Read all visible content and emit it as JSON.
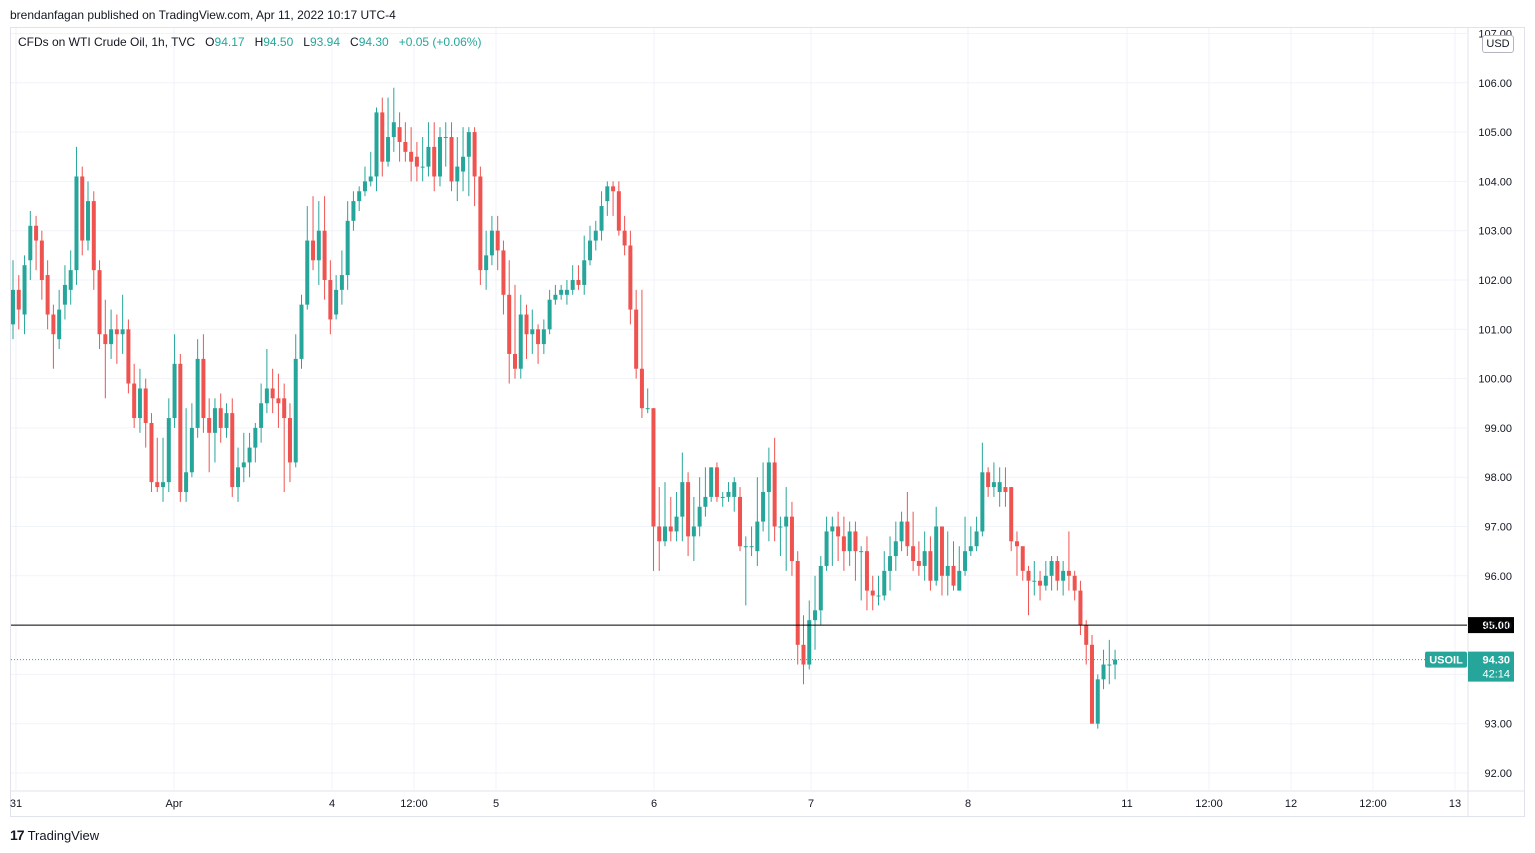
{
  "header": {
    "published": "brendanfagan published on TradingView.com, Apr 11, 2022 10:17 UTC-4"
  },
  "legend": {
    "symbol": "CFDs on WTI Crude Oil, 1h, TVC",
    "o_label": "O",
    "o_value": "94.17",
    "h_label": "H",
    "h_value": "94.50",
    "l_label": "L",
    "l_value": "93.94",
    "c_label": "C",
    "c_value": "94.30",
    "change": "+0.05 (+0.06%)"
  },
  "currency": "USD",
  "brand": {
    "logo": "17",
    "name": "TradingView"
  },
  "colors": {
    "up": "#26a69a",
    "down": "#ef5350",
    "grid": "#f0f3fa",
    "text": "#131722"
  },
  "chart_data": {
    "type": "candlestick",
    "interval": "1h",
    "symbol": "USOIL",
    "ylim": [
      91.6,
      107.0
    ],
    "y_ticks": [
      "92.00",
      "93.00",
      "94.00",
      "95.00",
      "96.00",
      "97.00",
      "98.00",
      "99.00",
      "100.00",
      "101.00",
      "102.00",
      "103.00",
      "104.00",
      "105.00",
      "106.00",
      "107.00"
    ],
    "x_ticks": [
      "31",
      "Apr",
      "4",
      "12:00",
      "5",
      "6",
      "7",
      "8",
      "11",
      "12:00",
      "12",
      "12:00",
      "13"
    ],
    "horizontal_line": {
      "value": 95.0,
      "label": "95.00"
    },
    "last_price": {
      "symbol": "USOIL",
      "value": "94.30",
      "countdown": "42:14"
    },
    "candles": [
      [
        101.1,
        101.8,
        102.4,
        100.8
      ],
      [
        101.8,
        101.4,
        102.1,
        101.0
      ],
      [
        101.3,
        102.3,
        102.5,
        100.9
      ],
      [
        102.4,
        103.1,
        103.4,
        102.0
      ],
      [
        103.1,
        102.8,
        103.3,
        102.2
      ],
      [
        102.8,
        102.0,
        103.0,
        101.6
      ],
      [
        102.1,
        101.3,
        102.4,
        101.0
      ],
      [
        101.3,
        100.9,
        101.5,
        100.2
      ],
      [
        100.8,
        101.4,
        101.8,
        100.6
      ],
      [
        101.5,
        101.9,
        102.3,
        101.2
      ],
      [
        101.8,
        102.2,
        102.6,
        101.5
      ],
      [
        102.2,
        104.1,
        104.7,
        101.9
      ],
      [
        104.1,
        102.8,
        104.3,
        102.5
      ],
      [
        102.8,
        103.6,
        104.0,
        102.6
      ],
      [
        103.6,
        102.2,
        103.8,
        101.8
      ],
      [
        102.2,
        100.9,
        102.4,
        100.6
      ],
      [
        100.9,
        100.7,
        101.6,
        99.6
      ],
      [
        100.7,
        101.0,
        101.4,
        100.4
      ],
      [
        101.0,
        100.9,
        101.3,
        100.3
      ],
      [
        100.9,
        101.0,
        101.7,
        100.5
      ],
      [
        101.0,
        99.9,
        101.2,
        99.7
      ],
      [
        99.9,
        99.2,
        100.3,
        99.0
      ],
      [
        99.2,
        99.8,
        100.2,
        98.9
      ],
      [
        99.8,
        99.1,
        100.0,
        98.6
      ],
      [
        99.1,
        97.9,
        99.3,
        97.7
      ],
      [
        97.9,
        97.8,
        98.8,
        97.7
      ],
      [
        97.8,
        97.9,
        98.8,
        97.5
      ],
      [
        97.9,
        99.2,
        99.6,
        97.7
      ],
      [
        99.2,
        100.3,
        100.9,
        99.0
      ],
      [
        100.3,
        97.7,
        100.5,
        97.5
      ],
      [
        97.7,
        98.1,
        99.4,
        97.5
      ],
      [
        98.1,
        99.0,
        99.5,
        98.0
      ],
      [
        99.0,
        100.4,
        100.8,
        98.8
      ],
      [
        100.4,
        99.2,
        100.9,
        98.9
      ],
      [
        99.2,
        98.9,
        99.6,
        98.1
      ],
      [
        98.9,
        99.4,
        99.6,
        98.3
      ],
      [
        99.4,
        99.0,
        99.7,
        98.7
      ],
      [
        99.0,
        99.3,
        99.5,
        98.8
      ],
      [
        99.3,
        97.8,
        99.6,
        97.6
      ],
      [
        97.8,
        98.2,
        98.6,
        97.5
      ],
      [
        98.2,
        98.3,
        98.9,
        97.9
      ],
      [
        98.3,
        98.6,
        98.9,
        98.0
      ],
      [
        98.6,
        99.0,
        99.1,
        98.3
      ],
      [
        99.0,
        99.5,
        99.9,
        98.7
      ],
      [
        99.5,
        99.8,
        100.6,
        99.3
      ],
      [
        99.8,
        99.6,
        100.2,
        99.3
      ],
      [
        99.6,
        99.5,
        100.1,
        99.0
      ],
      [
        99.6,
        99.2,
        99.9,
        97.7
      ],
      [
        99.2,
        98.3,
        99.5,
        97.9
      ],
      [
        98.3,
        100.4,
        100.9,
        98.2
      ],
      [
        100.4,
        101.5,
        101.7,
        100.2
      ],
      [
        101.5,
        102.8,
        103.5,
        101.4
      ],
      [
        102.8,
        102.4,
        103.7,
        102.2
      ],
      [
        102.4,
        103.0,
        103.6,
        101.9
      ],
      [
        103.0,
        102.0,
        103.7,
        101.6
      ],
      [
        102.0,
        101.2,
        102.4,
        100.9
      ],
      [
        101.3,
        101.8,
        102.1,
        101.2
      ],
      [
        101.8,
        102.1,
        102.6,
        101.5
      ],
      [
        102.1,
        103.2,
        103.6,
        101.8
      ],
      [
        103.2,
        103.6,
        103.8,
        103.0
      ],
      [
        103.6,
        103.8,
        103.9,
        103.4
      ],
      [
        103.8,
        104.0,
        104.3,
        103.7
      ],
      [
        104.0,
        104.1,
        104.6,
        103.9
      ],
      [
        104.1,
        105.4,
        105.5,
        103.8
      ],
      [
        105.4,
        104.4,
        105.7,
        104.1
      ],
      [
        104.4,
        104.9,
        105.7,
        104.3
      ],
      [
        104.9,
        105.2,
        105.9,
        104.6
      ],
      [
        105.1,
        104.8,
        105.4,
        104.4
      ],
      [
        104.8,
        104.6,
        105.2,
        104.4
      ],
      [
        104.6,
        104.4,
        105.1,
        104.0
      ],
      [
        104.5,
        104.3,
        104.8,
        104.0
      ],
      [
        104.3,
        104.3,
        104.9,
        104.0
      ],
      [
        104.3,
        104.7,
        105.2,
        104.1
      ],
      [
        104.7,
        104.1,
        105.2,
        103.8
      ],
      [
        104.1,
        104.9,
        105.1,
        103.9
      ],
      [
        104.9,
        104.9,
        105.2,
        104.3
      ],
      [
        104.9,
        104.0,
        105.2,
        103.8
      ],
      [
        104.0,
        104.3,
        104.9,
        103.6
      ],
      [
        104.2,
        104.5,
        105.1,
        103.8
      ],
      [
        104.5,
        105.0,
        105.1,
        103.7
      ],
      [
        105.0,
        104.1,
        105.1,
        103.5
      ],
      [
        104.1,
        102.2,
        104.3,
        101.9
      ],
      [
        102.2,
        102.5,
        103.0,
        101.8
      ],
      [
        102.5,
        103.0,
        103.3,
        102.3
      ],
      [
        103.0,
        102.6,
        103.3,
        102.2
      ],
      [
        102.6,
        101.7,
        102.8,
        101.3
      ],
      [
        101.7,
        100.5,
        102.4,
        99.9
      ],
      [
        100.5,
        100.2,
        101.9,
        100.0
      ],
      [
        100.2,
        101.3,
        101.7,
        100.0
      ],
      [
        101.3,
        100.9,
        101.5,
        100.4
      ],
      [
        100.9,
        101.0,
        101.4,
        100.5
      ],
      [
        101.0,
        100.7,
        101.1,
        100.3
      ],
      [
        100.7,
        101.0,
        101.2,
        100.5
      ],
      [
        101.0,
        101.6,
        101.8,
        100.9
      ],
      [
        101.6,
        101.7,
        101.9,
        101.5
      ],
      [
        101.7,
        101.8,
        101.9,
        101.6
      ],
      [
        101.7,
        101.8,
        102.0,
        101.5
      ],
      [
        101.8,
        102.0,
        102.3,
        101.7
      ],
      [
        102.0,
        101.9,
        102.3,
        101.8
      ],
      [
        101.9,
        102.4,
        102.9,
        101.7
      ],
      [
        102.4,
        102.8,
        103.1,
        102.3
      ],
      [
        102.8,
        103.0,
        103.2,
        102.6
      ],
      [
        103.0,
        103.5,
        103.8,
        102.8
      ],
      [
        103.6,
        103.9,
        104.0,
        103.3
      ],
      [
        103.9,
        103.8,
        104.0,
        103.3
      ],
      [
        103.8,
        103.0,
        104.0,
        102.9
      ],
      [
        103.0,
        102.7,
        103.3,
        102.5
      ],
      [
        102.7,
        101.4,
        103.0,
        101.1
      ],
      [
        101.4,
        100.2,
        101.8,
        100.0
      ],
      [
        100.2,
        99.4,
        101.8,
        99.2
      ],
      [
        99.4,
        99.4,
        99.8,
        99.3
      ],
      [
        99.4,
        97.0,
        99.4,
        96.1
      ],
      [
        97.0,
        96.7,
        97.8,
        96.1
      ],
      [
        96.7,
        97.0,
        97.9,
        96.6
      ],
      [
        97.0,
        96.9,
        97.6,
        96.7
      ],
      [
        96.9,
        97.2,
        97.7,
        96.7
      ],
      [
        97.2,
        97.9,
        98.5,
        96.7
      ],
      [
        97.9,
        96.8,
        98.1,
        96.4
      ],
      [
        96.8,
        97.0,
        97.6,
        96.3
      ],
      [
        97.0,
        97.4,
        98.0,
        96.8
      ],
      [
        97.4,
        97.6,
        98.2,
        97.2
      ],
      [
        97.6,
        98.2,
        98.2,
        97.5
      ],
      [
        98.2,
        97.6,
        98.3,
        97.5
      ],
      [
        97.6,
        97.6,
        97.7,
        97.4
      ],
      [
        97.6,
        97.7,
        97.9,
        97.5
      ],
      [
        97.6,
        97.9,
        98.0,
        97.3
      ],
      [
        97.6,
        96.6,
        97.8,
        96.5
      ],
      [
        96.6,
        96.6,
        96.8,
        95.4
      ],
      [
        96.6,
        96.6,
        97.0,
        96.4
      ],
      [
        96.5,
        97.1,
        98.0,
        96.2
      ],
      [
        97.1,
        97.7,
        98.3,
        96.9
      ],
      [
        97.7,
        98.3,
        98.6,
        96.7
      ],
      [
        98.3,
        97.0,
        98.8,
        96.7
      ],
      [
        97.0,
        97.0,
        97.2,
        96.4
      ],
      [
        97.0,
        97.2,
        97.8,
        96.1
      ],
      [
        97.2,
        96.3,
        97.5,
        96.0
      ],
      [
        96.3,
        94.6,
        96.5,
        94.2
      ],
      [
        94.6,
        94.2,
        95.2,
        93.8
      ],
      [
        94.2,
        95.1,
        95.5,
        94.1
      ],
      [
        95.1,
        95.3,
        96.0,
        94.5
      ],
      [
        95.3,
        96.2,
        96.4,
        95.0
      ],
      [
        96.2,
        96.9,
        97.2,
        96.1
      ],
      [
        96.9,
        97.0,
        97.2,
        96.2
      ],
      [
        97.0,
        96.8,
        97.3,
        96.3
      ],
      [
        96.8,
        96.5,
        97.2,
        96.1
      ],
      [
        96.5,
        96.9,
        97.1,
        96.2
      ],
      [
        96.9,
        96.5,
        97.1,
        95.9
      ],
      [
        96.5,
        96.5,
        96.6,
        95.5
      ],
      [
        96.5,
        95.7,
        96.8,
        95.3
      ],
      [
        95.7,
        95.6,
        96.0,
        95.3
      ],
      [
        95.6,
        95.6,
        96.0,
        95.4
      ],
      [
        95.6,
        96.1,
        96.5,
        95.5
      ],
      [
        96.1,
        96.4,
        96.8,
        95.7
      ],
      [
        96.4,
        96.7,
        97.1,
        96.1
      ],
      [
        96.7,
        97.1,
        97.3,
        96.5
      ],
      [
        97.1,
        96.6,
        97.7,
        96.4
      ],
      [
        96.6,
        96.3,
        97.3,
        96.1
      ],
      [
        96.3,
        96.2,
        96.7,
        96.0
      ],
      [
        96.2,
        96.5,
        96.9,
        95.9
      ],
      [
        96.5,
        95.9,
        96.8,
        95.7
      ],
      [
        95.9,
        97.0,
        97.4,
        95.8
      ],
      [
        97.0,
        96.0,
        97.0,
        95.6
      ],
      [
        96.0,
        96.2,
        96.9,
        95.6
      ],
      [
        96.2,
        95.8,
        96.7,
        95.7
      ],
      [
        95.7,
        96.1,
        96.6,
        95.7
      ],
      [
        96.1,
        96.5,
        97.2,
        96.0
      ],
      [
        96.5,
        96.6,
        97.0,
        96.4
      ],
      [
        96.6,
        96.9,
        97.2,
        96.5
      ],
      [
        96.9,
        98.1,
        98.7,
        96.8
      ],
      [
        98.1,
        97.8,
        98.2,
        97.6
      ],
      [
        97.8,
        97.9,
        98.3,
        97.6
      ],
      [
        97.7,
        97.9,
        98.2,
        97.4
      ],
      [
        97.8,
        97.7,
        98.2,
        97.4
      ],
      [
        97.8,
        96.7,
        97.8,
        96.5
      ],
      [
        96.7,
        96.6,
        96.9,
        96.0
      ],
      [
        96.6,
        96.1,
        96.6,
        95.9
      ],
      [
        96.1,
        95.9,
        96.2,
        95.2
      ],
      [
        95.9,
        95.9,
        96.3,
        95.6
      ],
      [
        95.9,
        95.8,
        96.1,
        95.5
      ],
      [
        95.8,
        96.0,
        96.3,
        95.7
      ],
      [
        96.0,
        96.3,
        96.4,
        95.7
      ],
      [
        96.3,
        95.9,
        96.4,
        95.7
      ],
      [
        95.9,
        96.1,
        96.3,
        95.6
      ],
      [
        96.1,
        96.0,
        96.9,
        95.7
      ],
      [
        96.0,
        95.7,
        96.1,
        95.5
      ],
      [
        95.7,
        95.0,
        95.9,
        94.8
      ],
      [
        95.0,
        94.6,
        95.1,
        94.2
      ],
      [
        94.6,
        93.0,
        94.8,
        93.0
      ],
      [
        93.0,
        93.9,
        94.0,
        92.9
      ],
      [
        93.9,
        94.2,
        94.5,
        93.7
      ],
      [
        94.2,
        94.2,
        94.7,
        93.8
      ],
      [
        94.2,
        94.3,
        94.5,
        93.9
      ]
    ]
  }
}
